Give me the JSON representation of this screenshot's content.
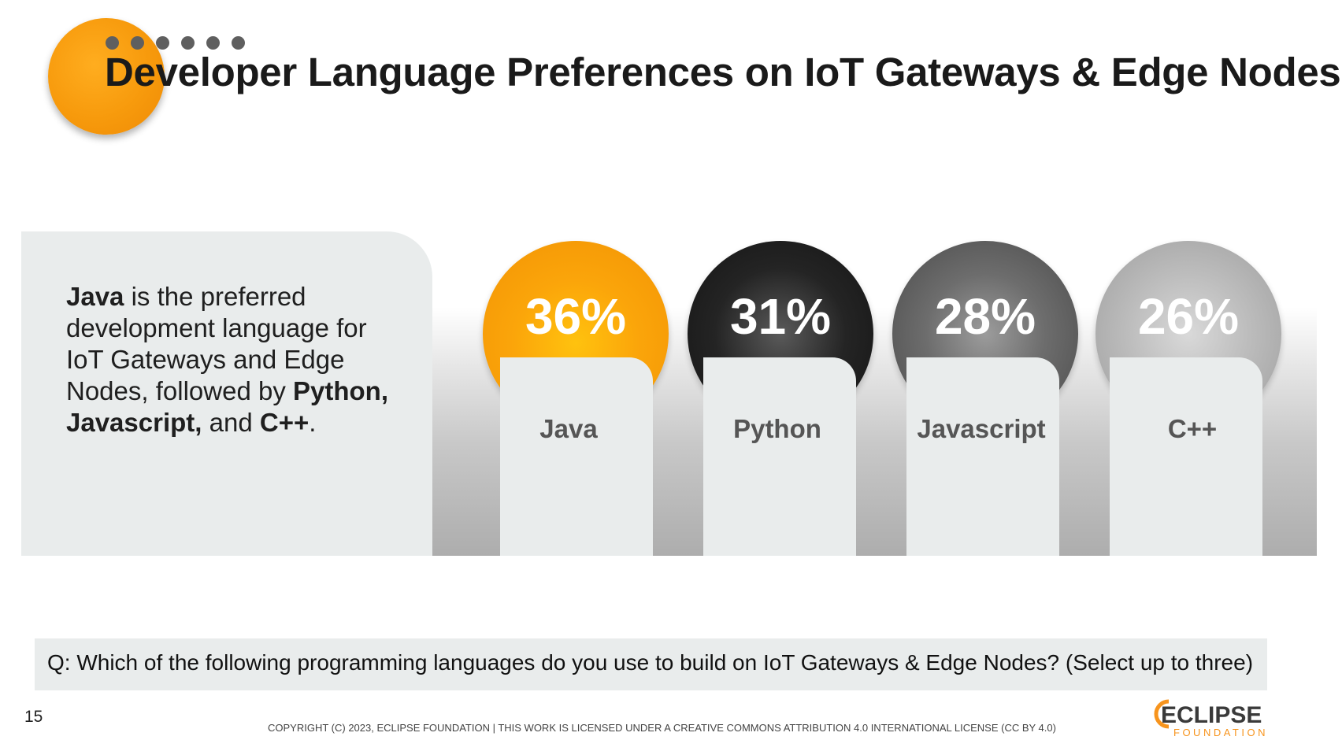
{
  "header": {
    "title": "Developer Language Preferences on IoT Gateways & Edge Nodes"
  },
  "summary": {
    "seg1": "Java",
    "seg2": " is the preferred development language for IoT Gateways and Edge Nodes, followed by ",
    "seg3": "Python, Javascript,",
    "seg4": " and ",
    "seg5": "C++",
    "seg6": "."
  },
  "chart_data": {
    "type": "bar",
    "categories": [
      "Java",
      "Python",
      "Javascript",
      "C++"
    ],
    "values": [
      36,
      31,
      28,
      26
    ],
    "value_labels": [
      "36%",
      "31%",
      "28%",
      "26%"
    ],
    "unit": "%"
  },
  "colors": {
    "java": "#f9a10a",
    "python": "#1e1e1e",
    "javascript": "#6a6a6a",
    "cpp": "#bcbcbc",
    "brand_orange": "#f7941d"
  },
  "question": "Q: Which of the following programming languages do you use to build on IoT Gateways & Edge Nodes? (Select up to three)",
  "footer": {
    "page_number": "15",
    "copyright": "COPYRIGHT (C) 2023, ECLIPSE FOUNDATION | THIS WORK IS LICENSED UNDER A CREATIVE COMMONS ATTRIBUTION 4.0 INTERNATIONAL LICENSE (CC BY 4.0)",
    "logo_word": "ECLIPSE",
    "logo_sub": "FOUNDATION"
  }
}
